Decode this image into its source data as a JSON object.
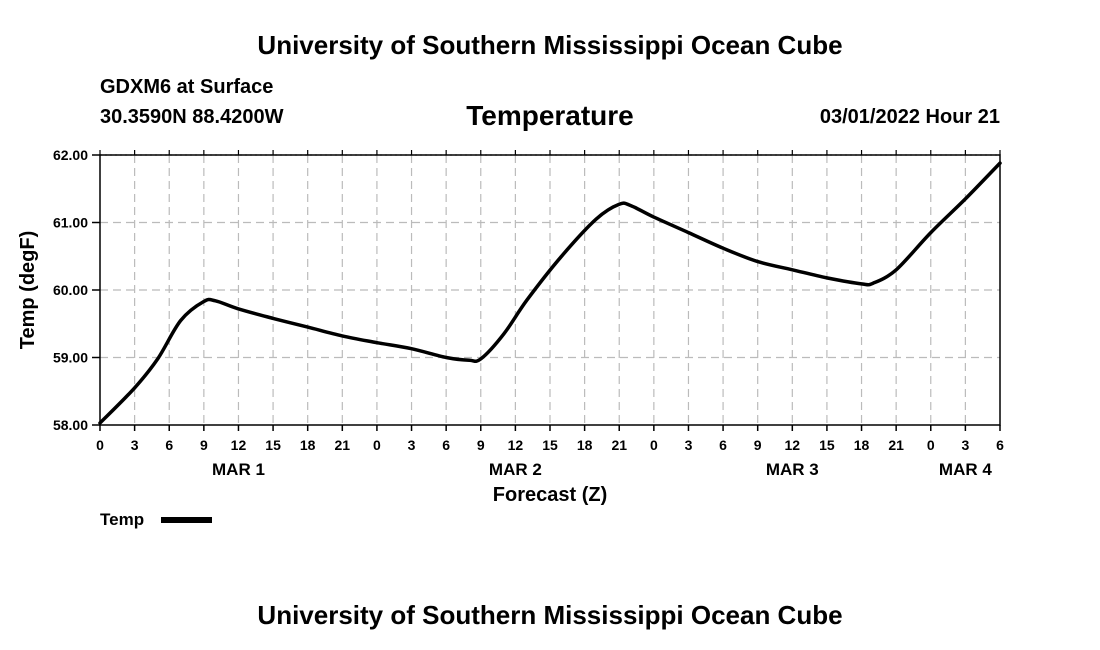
{
  "header": {
    "site_title": "University of Southern Mississippi Ocean Cube",
    "station": "GDXM6 at Surface",
    "coordinates": "30.3590N  88.4200W",
    "run_date": "03/01/2022 Hour 21",
    "footer_title": "University of Southern Mississippi Ocean Cube"
  },
  "chart_data": {
    "type": "line",
    "title": "Temperature",
    "xlabel": "Forecast (Z)",
    "ylabel": "Temp (degF)",
    "ylim": [
      58.0,
      62.0
    ],
    "yticks": [
      "58.00",
      "59.00",
      "60.00",
      "61.00",
      "62.00"
    ],
    "x_hour_range": [
      0,
      78
    ],
    "x_tick_labels": [
      "0",
      "3",
      "6",
      "9",
      "12",
      "15",
      "18",
      "21",
      "0",
      "3",
      "6",
      "9",
      "12",
      "15",
      "18",
      "21",
      "0",
      "3",
      "6",
      "9",
      "12",
      "15",
      "18",
      "21",
      "0",
      "3",
      "6"
    ],
    "date_labels": [
      {
        "label": "MAR 1",
        "hour": 12
      },
      {
        "label": "MAR 2",
        "hour": 36
      },
      {
        "label": "MAR 3",
        "hour": 60
      },
      {
        "label": "MAR 4",
        "hour": 75
      }
    ],
    "grid": true,
    "legend": {
      "label": "Temp",
      "position": "bottom-left"
    },
    "series": [
      {
        "name": "Temp",
        "color": "#000000",
        "x_hours": [
          0,
          3,
          5,
          7,
          9,
          10,
          12,
          15,
          18,
          21,
          24,
          27,
          30,
          32,
          33,
          35,
          37,
          40,
          43,
          45,
          46,
          48,
          51,
          54,
          57,
          60,
          63,
          66,
          67,
          69,
          72,
          75,
          78
        ],
        "values": [
          58.03,
          58.55,
          58.98,
          59.55,
          59.83,
          59.84,
          59.72,
          59.58,
          59.45,
          59.32,
          59.22,
          59.13,
          59.0,
          58.96,
          58.98,
          59.35,
          59.85,
          60.5,
          61.05,
          61.27,
          61.25,
          61.08,
          60.85,
          60.62,
          60.42,
          60.3,
          60.18,
          60.09,
          60.1,
          60.3,
          60.85,
          61.35,
          61.88
        ]
      }
    ]
  }
}
